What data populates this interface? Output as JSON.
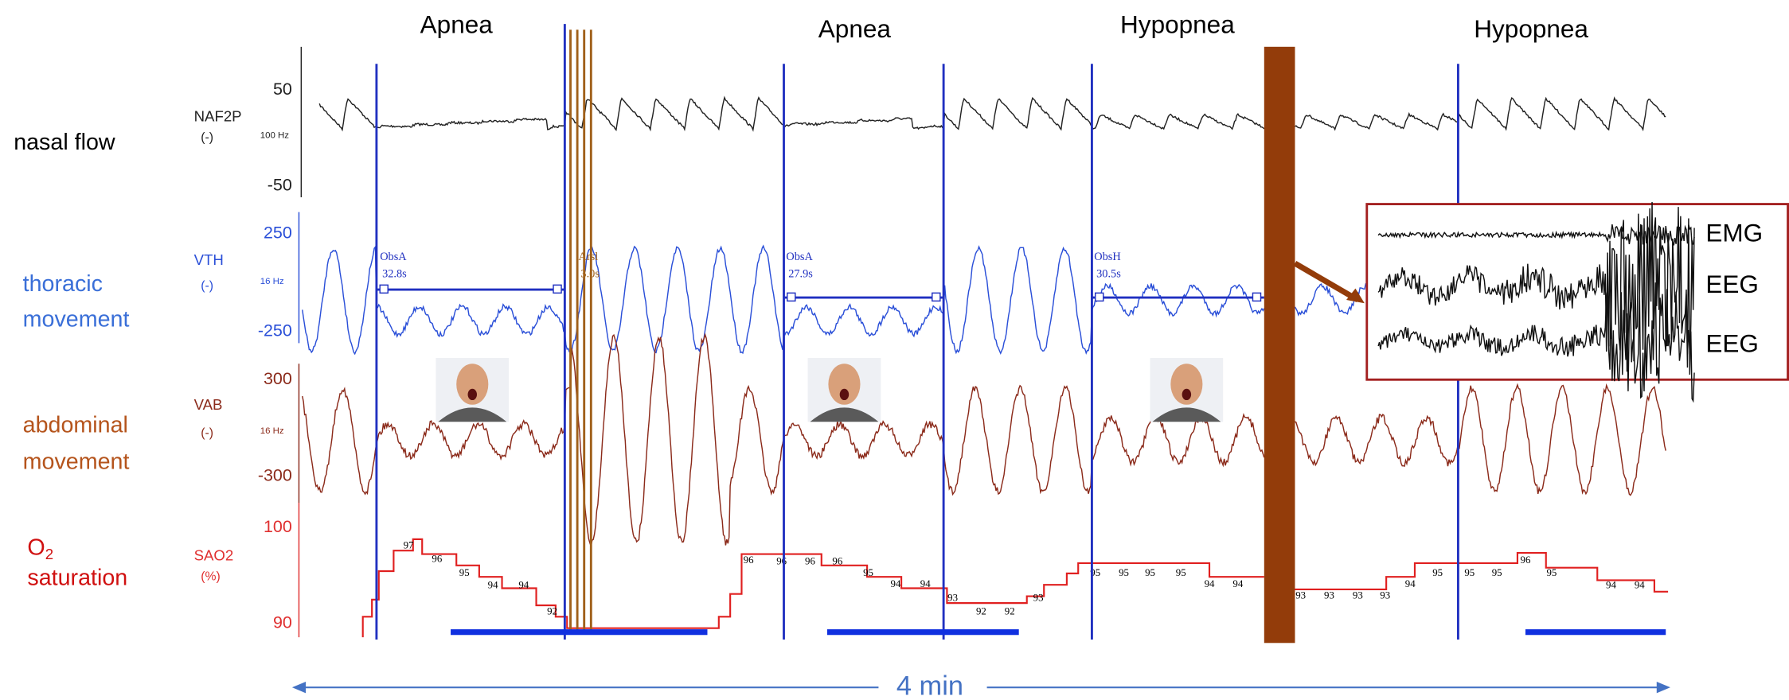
{
  "events": [
    {
      "label": "Apnea"
    },
    {
      "label": "Apnea"
    },
    {
      "label": "Hypopnea"
    },
    {
      "label": "Hypopnea"
    }
  ],
  "channels": [
    {
      "description": [
        "nasal flow"
      ],
      "name": "NAF2P",
      "unit": "(-)",
      "rate": "100 Hz",
      "top": "50",
      "bottom": "-50"
    },
    {
      "description": [
        "thoracic",
        "movement"
      ],
      "name": "VTH",
      "unit": "(-)",
      "rate": "16 Hz",
      "top": "250",
      "bottom": "-250"
    },
    {
      "description": [
        "abdominal",
        "movement"
      ],
      "name": "VAB",
      "unit": "(-)",
      "rate": "16 Hz",
      "top": "300",
      "bottom": "-300"
    },
    {
      "description": [
        "saturation"
      ],
      "description_symbol": "O",
      "description_subscript": "2",
      "name": "SAO2",
      "unit": "(%)",
      "top": "100",
      "bottom": "90"
    }
  ],
  "scorings": [
    {
      "label": "ObsA",
      "duration": "32.8s"
    },
    {
      "label": "Arsl",
      "duration": "3.0s"
    },
    {
      "label": "ObsA",
      "duration": "27.9s"
    },
    {
      "label": "ObsH",
      "duration": "30.5s"
    }
  ],
  "sao2_readings": [
    "97",
    "96",
    "95",
    "94",
    "94",
    "92",
    "96",
    "96",
    "96",
    "96",
    "95",
    "94",
    "94",
    "93",
    "92",
    "92",
    "93",
    "95",
    "95",
    "95",
    "95",
    "94",
    "94",
    "93",
    "93",
    "93",
    "93",
    "94",
    "95",
    "95",
    "95",
    "96",
    "95",
    "94",
    "94"
  ],
  "inset": {
    "labels": [
      "EMG",
      "EEG",
      "EEG"
    ]
  },
  "duration": "4 min"
}
